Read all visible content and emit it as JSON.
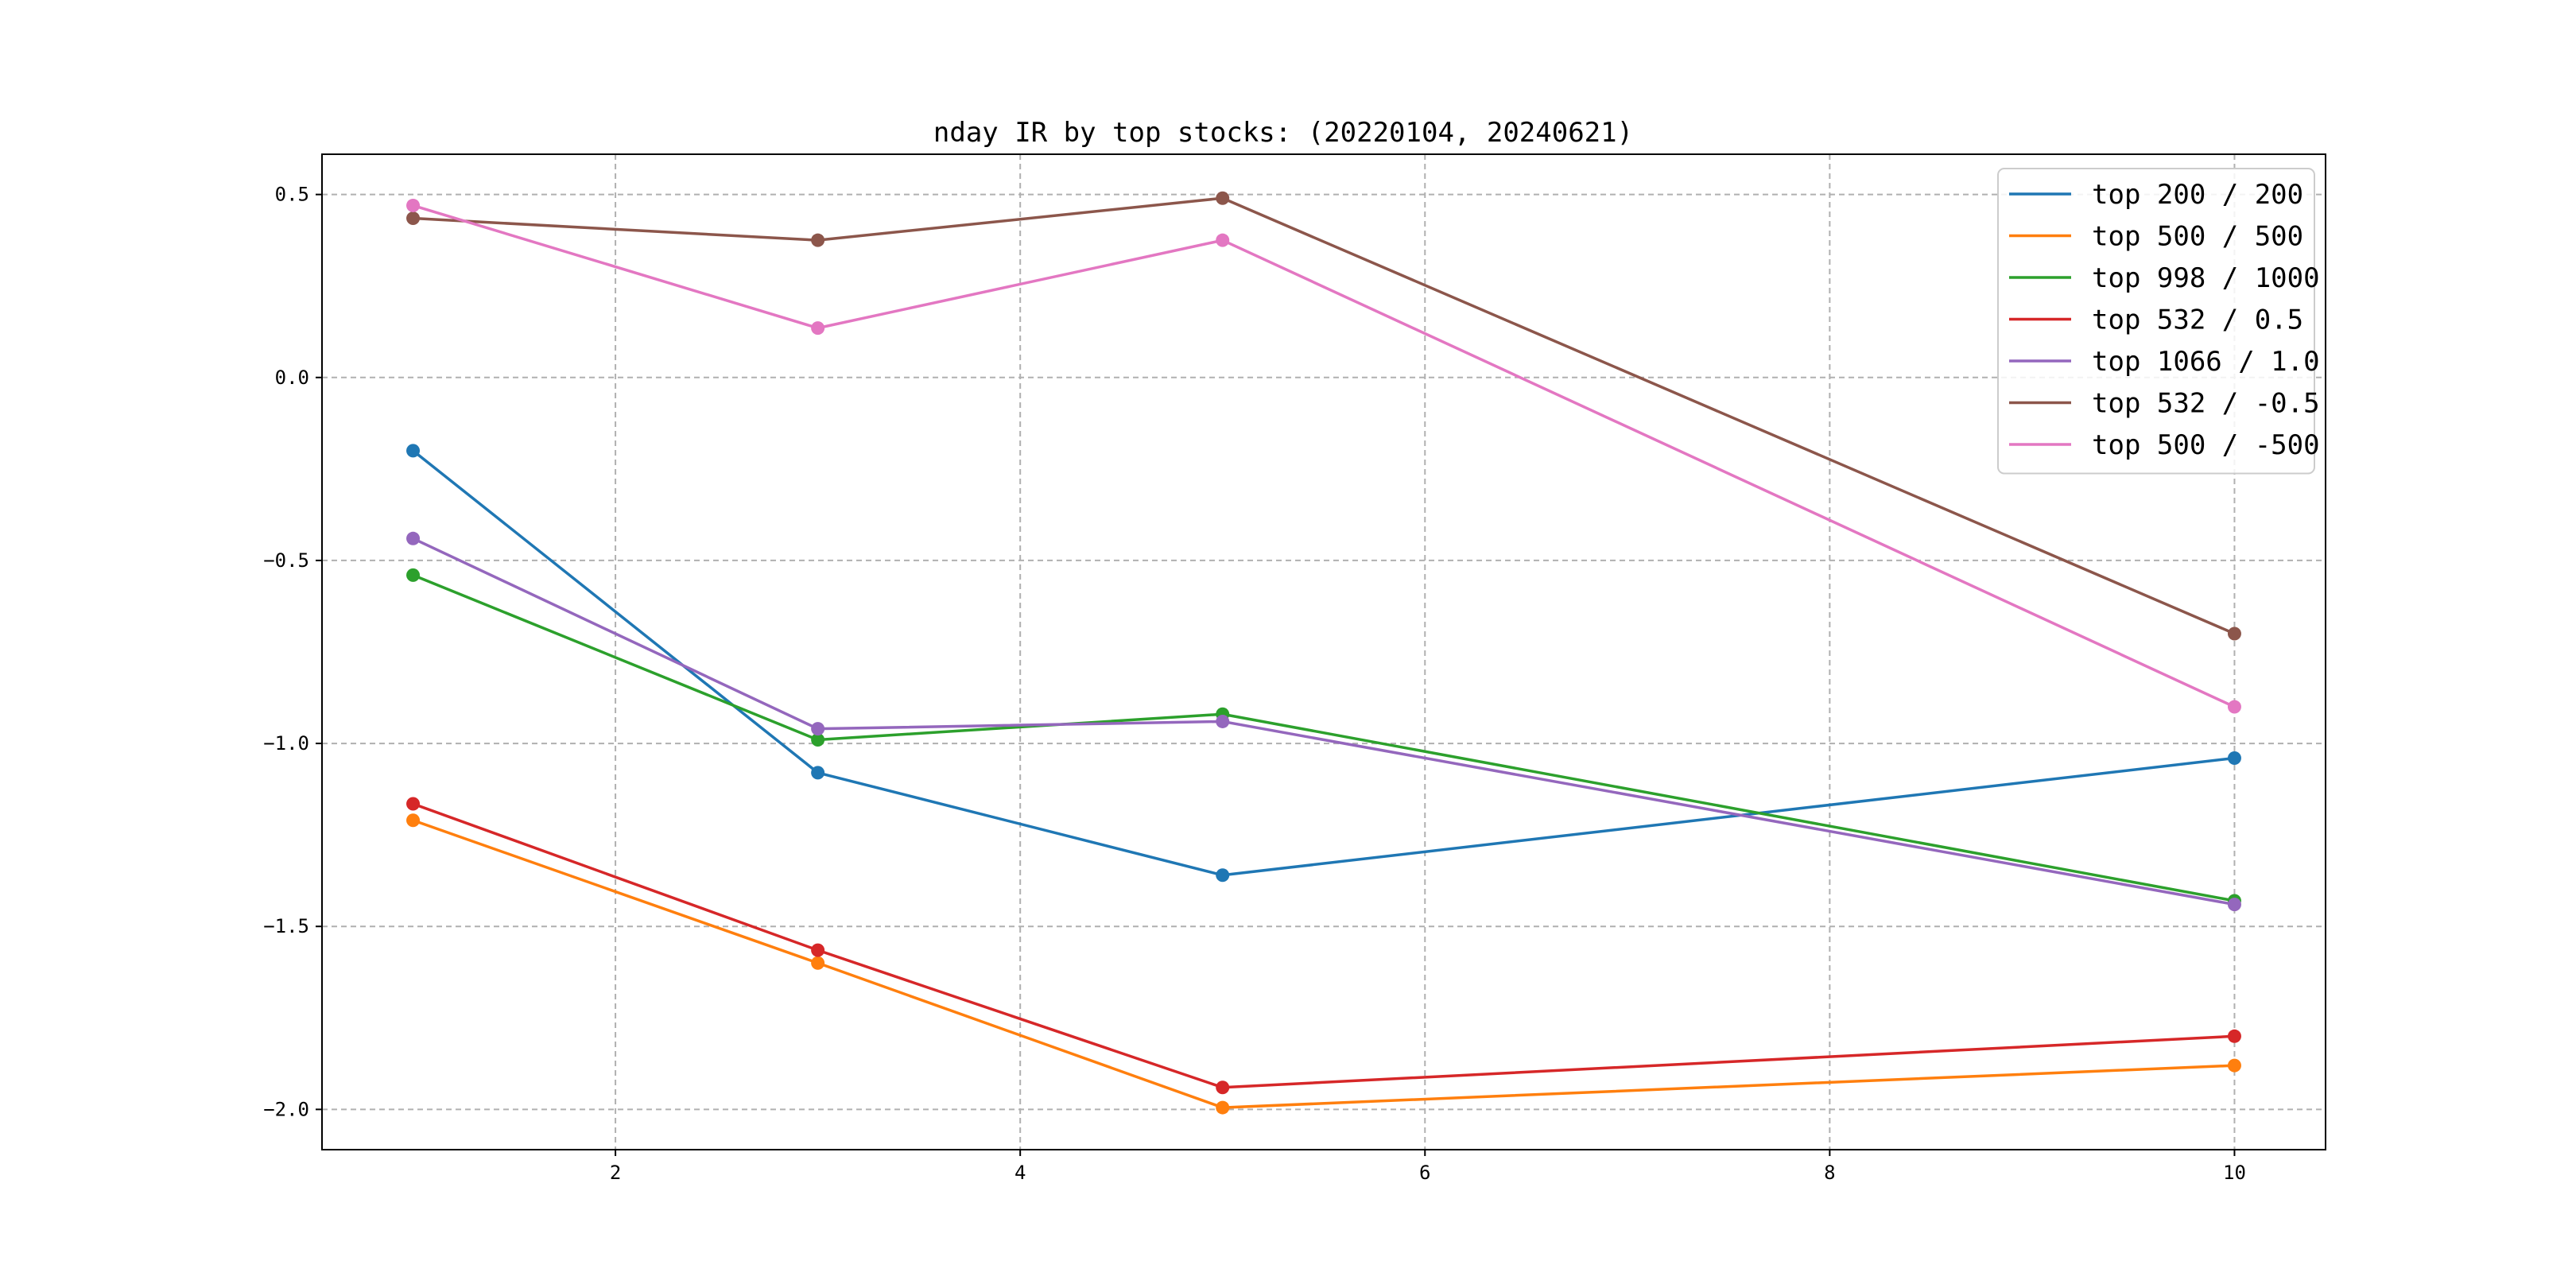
{
  "chart_data": {
    "type": "line",
    "title": "nday IR by top stocks: (20220104, 20240621)",
    "xlabel": "",
    "ylabel": "",
    "x": [
      1,
      3,
      5,
      10
    ],
    "xlim": [
      0.55,
      10.45
    ],
    "ylim": [
      -2.11,
      0.61
    ],
    "xticks": [
      2,
      4,
      6,
      8,
      10
    ],
    "yticks": [
      -2.0,
      -1.5,
      -1.0,
      -0.5,
      0.0,
      0.5
    ],
    "xtick_labels": [
      "2",
      "4",
      "6",
      "8",
      "10"
    ],
    "ytick_labels": [
      "−2.0",
      "−1.5",
      "−1.0",
      "−0.5",
      "0.0",
      "0.5"
    ],
    "grid": true,
    "legend": "top-right",
    "markers": true,
    "series": [
      {
        "name": "top 200 / 200",
        "color": "#1f77b4",
        "values": [
          -0.2,
          -1.08,
          -1.36,
          -1.04
        ]
      },
      {
        "name": "top 500 / 500",
        "color": "#ff7f0e",
        "values": [
          -1.21,
          -1.6,
          -1.995,
          -1.88
        ]
      },
      {
        "name": "top 998 / 1000",
        "color": "#2ca02c",
        "values": [
          -0.54,
          -0.99,
          -0.92,
          -1.43
        ]
      },
      {
        "name": "top 532 / 0.5",
        "color": "#d62728",
        "values": [
          -1.165,
          -1.565,
          -1.94,
          -1.8
        ]
      },
      {
        "name": "top 1066 / 1.0",
        "color": "#9467bd",
        "values": [
          -0.44,
          -0.96,
          -0.94,
          -1.44
        ]
      },
      {
        "name": "top 532 / -0.5",
        "color": "#8c564b",
        "values": [
          0.435,
          0.375,
          0.49,
          -0.7
        ]
      },
      {
        "name": "top 500 / -500",
        "color": "#e377c2",
        "values": [
          0.47,
          0.135,
          0.375,
          -0.9
        ]
      }
    ]
  }
}
